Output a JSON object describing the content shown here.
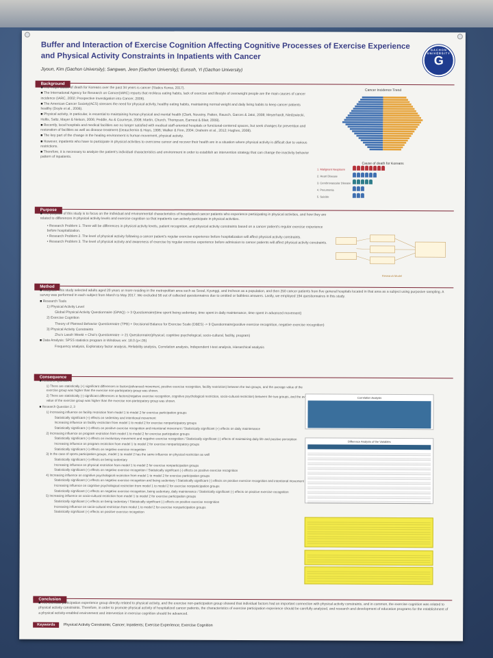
{
  "poster": {
    "title": "Buffer and Interaction of Exercise Cognition Affecting Cognitive Processes of Exercise Experience and Physical Activity Constraints in Inpatients with Cancer",
    "authors": "Jiyoun, Kim (Gachon University); Sangwan, Jeon (Gachon University); Eunsoh, Yi (Gachon University)",
    "logo_text": "G",
    "logo_ring": "GACHON UNIVERSITY"
  },
  "sections": {
    "background": "Background",
    "purpose": "Purpose",
    "method": "Method",
    "consequence": "Consequence",
    "conclusion": "Conclusion",
    "keywords_label": "Keywords",
    "keywords": "Physical Activity Constraints; Cancer; Inpatients; Exercise Experience; Exercise Cognition"
  },
  "background_items": [
    "The major cause of death for Koreans over the past 34 years is cancer (Statics Korea, 2017).",
    "The International Agency for Research on Cancer(IARC) reports that reckless eating habits, lack of exercise and lifestyle of overweight people are the main causes of cancer incidence (IARC, 2002; Prospective Investigation into Cancer, 2006).",
    "The American Cancer Society(ACS) stresses the need for physical activity, healthy eating habits, maintaining normal weight and daily living habits to keep cancer patients healthy (Doyle et al., 2006).",
    "Physical activity, in particular, is essential to maintaining human physical and mental health (Clark, Novotny, Patten, Rausch, Garces & Jatoi, 2008; Meyerhardt, Niedzwiecki, Hollis, Saltz, Mayer & Nelson, 2006; Peddle, Au & Courneya, 2008; Martin, Church, Thompson, Earnest & Blair, 2009).",
    "Recently, local hospitals and medical facilities are no longer satisfied with medical staff-oriented hospitals or functional-centered spaces, but seek changes for prevention and restoration of facilities as well as disease treatment (Deauchemin & Hays, 1996; Walker & Finn, 2004; Draheim et al., 2012; Hughes, 2008).",
    "The key part of the change in the healing environment is human movement, physical activity.",
    "However, inpatients who have to participate in physical activities to overcome cancer and recover their health are in a situation where physical activity is difficult due to various restrictions.",
    "Therefore, it is necessary to analyze the patient's individual characteristics and environment in order to establish an intervention strategy that can change the inactivity behavior pattern of inpatients."
  ],
  "cancer_chart": {
    "title": "Cancer Incidence Trend",
    "death_title": "Cause of death for Koreans",
    "death_rows": [
      "1. Malignant Neoplasm",
      "2. Heart Disease",
      "3. Cerebrovascular Disease",
      "4. Pneumonia",
      "5. Suicide"
    ]
  },
  "purpose_items": {
    "main": "The purpose of this study is to focus on the individual and environmental characteristics of hospitalized cancer patients who experience participating in physical activities, and how they are related to differences in physical activity levels and exercise cognition so that inpatients can actively participate in physical activities.",
    "rp1": "Research Problem 1. There will be differences in physical activity levels, patient recognition, and physical activity constraints based on a cancer patient's regular exercise experience before hospitalization.",
    "rp2": "Research Problem 2. The level of physical activity following a cancer patient's regular exercise experience before hospitalization will affect physical activity constraints.",
    "rp3": "Research Problem 3. The level of physical activity and awareness of exercise by regular exercise experience before admission to cancer patients will affect physical activity constraints.",
    "model_caption": "Research Model"
  },
  "method_items": {
    "subjects": "Subjects: This study selected adults aged 20 years or more residing in the metropolitan area such as Seoul, Kyunggi, and Incheon as a population, and then 250 cancer patients from five general hospitals located in that area as a subject using purposive sampling. A survey was performed in each subject from March to May 2017. We excluded 56 out of collected questionnaires due to omitted or faithless answers. Lastly, we employed 194 questionnaires in this study.",
    "tools": "Research Tools",
    "t1": "1) Physical Activity Level",
    "t1a": "Global Physical Activity Questionnaire (GPAQ) -> 3 Questionnaire(time spent being sedentary, time spent in daily maintenance, time spent in advanced movement)",
    "t2": "2) Exercise Cognition",
    "t2a": "Theory of Planned Behavior Questionnaire (TPB) + Decisional Balance for Exercise Scale (DBES) -> 9 Questionnaire(positive exercise recognition, negative exercise recognition)",
    "t3": "3) Physical Activity Constraints",
    "t3a": "Zhu's Lasoh Weekt + Choi's Questionnaire -> 21 Questionnaire(physical, cognitive psychological, socio-cultural, facility, program)",
    "analysis": "Data Analysis: SPSS statistics program in Windows ver. 18.0 (p<.05)",
    "analysis2": "Frequency analysis, Exploratory factor analysis, Reliability analysis, Correlation analysis, Independent t-test analysis, Hierarchical analysis"
  },
  "consequence_items": {
    "rq1": "Research Question 1",
    "rq1a": "1) There are statistically (+) significant differences in factors(advanced movement, positive exercise recognition, facility restriction) between the two groups, and the average value of the exercise group was higher than the exercise non-participatory group was shown.",
    "rq1b": "2) There are statistically (-) significant differences in factors(negative exercise recognition, cognitive psychological restriction, socio-cultural restriction) between the two groups, and the average value of the exercise group was higher than the exercise non-participatory group was shown.",
    "rq23": "Research Question 2, 3",
    "r1": "1) Increasing influence on facility restriction from model 1 to model 2 for exercise participation groups",
    "r1a": "Statistically significant (+) effects on sedentary and intentional movement",
    "r1b": "Increasing influence on facility restriction from model 1 to model 2 for exercise nonparticipatory groups",
    "r1c": "Statistically significant (+) effects on positive exercise recognition and intentional movement / Statistically significant (+) effects on daily maintenance",
    "r2": "2) Increasing influence on program restriction from model 1 to model 2 for exercise participation groups",
    "r2a": "Statistically significant (+) effects on involuntary movement and negative exercise recognition / Statistically significant (-) effects of maintaining daily life and positive perception",
    "r2b": "Increasing influence on program restriction from model 1 to model 2 for exercise nonparticipatory groups",
    "r2c": "Statistically significant (+) effects on negative exercise recognition",
    "r3": "3) In the case of sports participation groups, model 1 to model 2 has the same influence on physical restriction as well",
    "r3a": "Statistically significant (+) effects on being sedentary",
    "r3b": "Increasing influence on physical restriction from model 1 to model 2 for exercise nonparticipation groups",
    "r3c": "Statistically significant (+) effects on negative exercise recognition / Statistically significant (-) effects on positive exercise recognition",
    "r4": "4) Increasing influence on cognitive psychological restriction from model 1 to model 2 for exercise participation groups",
    "r4a": "Statistically significant (+) effects on negative exercise recognition and being sedentary / Statistically significant (-) effects on positive exercise recognition and intentional movement",
    "r4b": "Increasing influence on cognitive psychological restriction from model 1 to model 2 for exercise nonparticipation groups",
    "r4c": "Statistically significant (+) effects on negative exercise recognition, being sedentary, daily maintenance / Statistically significant (-) effects on positive exercise recognition",
    "r5": "5) Increasing influence on socio-cultural restriction from model 1 to model 2 for exercise participation groups",
    "r5a": "Statistically significant (+) effects on being sedentary / Statistically significant (-) effects on positive exercise recognition",
    "r5b": "Increasing influence on socio-cultural restriction from model 1 to model 2 for exercise nonparticipation groups",
    "r5c": "Statistically significant (+) effects on positive exercise recognition",
    "corr_title": "Correlation Analysis",
    "diff_title": "Difference Analysis of the Variables"
  },
  "conclusion_text": "The exercise participation experience group directly related to physical activity, and the exercise non-participation group showed that individual factors had an important connection with physical activity constraints, and in common, the exercise cognition was related to physical activity constraints. Therefore, in order to promote physical activity of hospitalized cancer patients, the characteristics of exercise participation experience should be carefully analyzed, and research and development of education programs for the establishment of a physical activity-enabled environment and intervention in exercise cognition should be advanced.",
  "colors": {
    "section_bg": "#7a2334",
    "title_color": "#3a3f86",
    "male_bars": "#3f6fb0",
    "female_bars": "#e6a33a",
    "table_yellow": "#f3ea4a"
  }
}
